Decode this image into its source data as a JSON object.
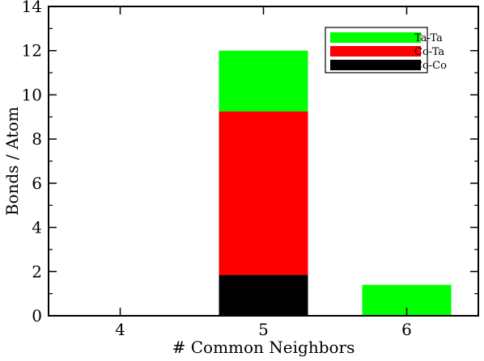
{
  "chart_data": {
    "type": "bar",
    "stacked": true,
    "categories": [
      "4",
      "5",
      "6"
    ],
    "series": [
      {
        "name": "Co-Co",
        "values": [
          0,
          1.85,
          0
        ],
        "color": "#000000"
      },
      {
        "name": "Co-Ta",
        "values": [
          0,
          7.4,
          0
        ],
        "color": "#ff0000"
      },
      {
        "name": "Ta-Ta",
        "values": [
          0,
          2.75,
          1.4
        ],
        "color": "#00ff00"
      }
    ],
    "legend_order": [
      "Ta-Ta",
      "Co-Ta",
      "Co-Co"
    ],
    "legend_position": "top-right",
    "title": "",
    "xlabel": "# Common Neighbors",
    "ylabel": "Bonds / Atom",
    "ylim": [
      0,
      14
    ],
    "yticks": [
      0,
      2,
      4,
      6,
      8,
      10,
      12,
      14
    ],
    "grid": false
  }
}
